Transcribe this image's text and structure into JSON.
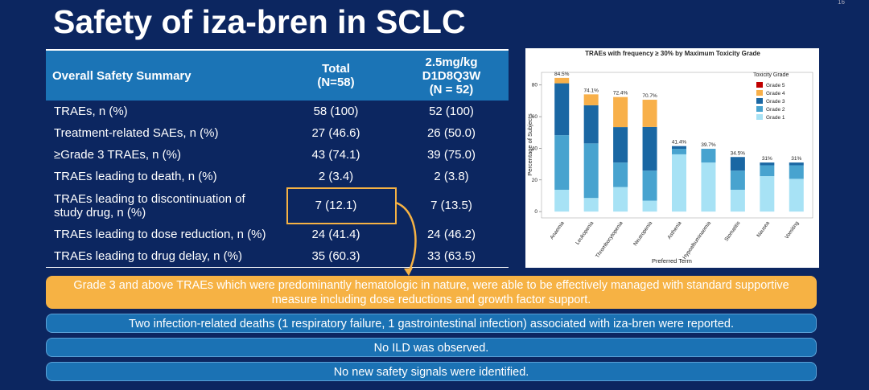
{
  "header": {
    "title": "Safety of iza-bren in SCLC",
    "page": "16"
  },
  "table": {
    "header": [
      "Overall Safety Summary",
      "Total\n(N=58)",
      "2.5mg/kg\nD1D8Q3W\n(N = 52)"
    ],
    "rows": [
      [
        "TRAEs, n (%)",
        "58 (100)",
        "52 (100)"
      ],
      [
        "Treatment-related SAEs, n (%)",
        "27 (46.6)",
        "26 (50.0)"
      ],
      [
        "≥Grade 3 TRAEs, n (%)",
        "43 (74.1)",
        "39 (75.0)"
      ],
      [
        "TRAEs leading to death, n (%)",
        "2 (3.4)",
        "2 (3.8)"
      ],
      [
        "TRAEs leading to discontinuation of study drug, n (%)",
        "7 (12.1)",
        "7 (13.5)"
      ],
      [
        "TRAEs leading to dose reduction, n (%)",
        "24 (41.4)",
        "24 (46.2)"
      ],
      [
        "TRAEs leading to drug delay, n (%)",
        "35 (60.3)",
        "33 (63.5)"
      ]
    ]
  },
  "chart_data": {
    "type": "stacked-bar",
    "title": "TRAEs with frequency ≥ 30% by Maximum Toxicity Grade",
    "x_label": "Preferred Term",
    "y_label": "Percentage of Subjects",
    "legend_title": "Toxicity Grade",
    "categories": [
      "Anaemia",
      "Leukopenia",
      "Thrombocytopenia",
      "Neutropenia",
      "Asthenia",
      "Hypoalbuminaemia",
      "Stomatitis",
      "Nausea",
      "Vomiting"
    ],
    "series": [
      {
        "name": "Grade 5",
        "color": "#c00000",
        "values": [
          0,
          0,
          0,
          0,
          0,
          0,
          0,
          0,
          0
        ]
      },
      {
        "name": "Grade 4",
        "color": "#f8b04a",
        "values": [
          3.4,
          6.9,
          19.0,
          17.2,
          0,
          0,
          0,
          0,
          0
        ]
      },
      {
        "name": "Grade 3",
        "color": "#1a67a3",
        "values": [
          32.8,
          24.1,
          22.4,
          27.6,
          1.7,
          0,
          8.6,
          1.7,
          1.7
        ]
      },
      {
        "name": "Grade 2",
        "color": "#48a3cf",
        "values": [
          34.5,
          34.5,
          15.5,
          19.0,
          3.5,
          8.7,
          12.1,
          6.9,
          8.6
        ]
      },
      {
        "name": "Grade 1",
        "color": "#a7e2f5",
        "values": [
          13.8,
          8.6,
          15.5,
          6.9,
          36.2,
          31.0,
          13.8,
          22.4,
          20.7
        ]
      }
    ],
    "totals": [
      84.5,
      74.1,
      72.4,
      70.7,
      41.4,
      39.7,
      34.5,
      31,
      31
    ],
    "total_labels": [
      "84.5%",
      "74.1%",
      "72.4%",
      "70.7%",
      "41.4%",
      "39.7%",
      "34.5%",
      "31%",
      "31%"
    ],
    "ylim": [
      -4,
      88
    ],
    "yticks": [
      0,
      20,
      40,
      60,
      80
    ]
  },
  "notes": {
    "highlight": "Grade 3 and above TRAEs which were predominantly hematologic in nature, were able to be effectively managed with standard supportive measure including dose reductions and growth factor support.",
    "items": [
      "Two infection-related deaths (1 respiratory failure, 1 gastrointestinal infection) associated with iza-bren were reported.",
      "No ILD was observed.",
      "No new safety signals were identified."
    ]
  }
}
